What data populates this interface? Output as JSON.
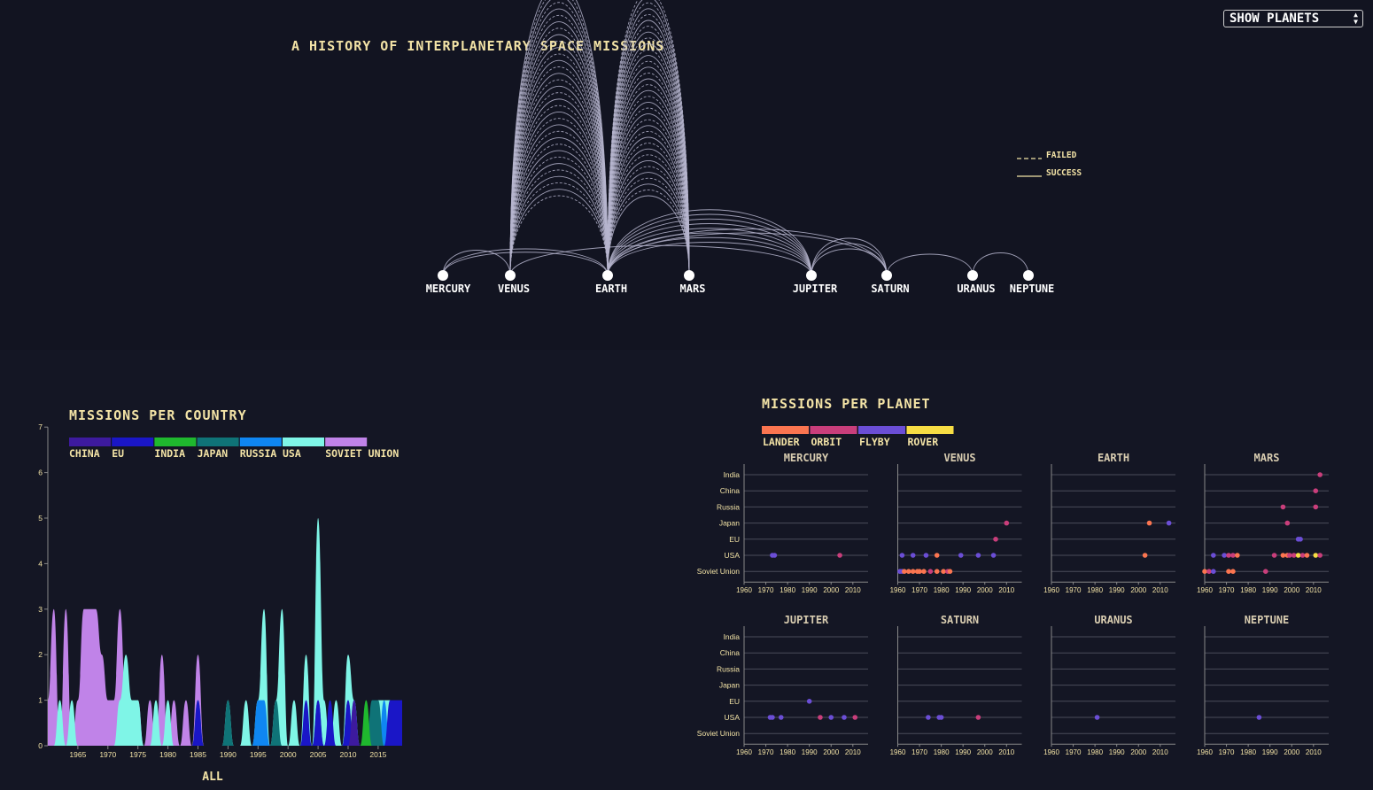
{
  "page": {
    "title": "A HISTORY OF INTERPLANETARY SPACE MISSIONS",
    "selector_value": "SHOW PLANETS"
  },
  "legend_lines": {
    "failed": "FAILED",
    "success": "SUCCESS"
  },
  "planets": [
    "MERCURY",
    "VENUS",
    "EARTH",
    "MARS",
    "JUPITER",
    "SATURN",
    "URANUS",
    "NEPTUNE"
  ],
  "country_chart": {
    "title": "MISSIONS PER COUNTRY",
    "footer": "ALL",
    "legend": [
      {
        "name": "CHINA",
        "color": "#3d1a9e"
      },
      {
        "name": "EU",
        "color": "#1a16c7"
      },
      {
        "name": "INDIA",
        "color": "#1fb82e"
      },
      {
        "name": "JAPAN",
        "color": "#0f7377"
      },
      {
        "name": "RUSSIA",
        "color": "#0f86f2"
      },
      {
        "name": "USA",
        "color": "#7ff5e7"
      },
      {
        "name": "SOVIET UNION",
        "color": "#c083e8"
      }
    ]
  },
  "planet_chart": {
    "title": "MISSIONS PER PLANET",
    "legend": [
      {
        "name": "LANDER",
        "color": "#fb7550"
      },
      {
        "name": "ORBIT",
        "color": "#c93e7b"
      },
      {
        "name": "FLYBY",
        "color": "#6b4ed6"
      },
      {
        "name": "ROVER",
        "color": "#f7dd44"
      }
    ],
    "countries": [
      "India",
      "China",
      "Russia",
      "Japan",
      "EU",
      "USA",
      "Soviet Union"
    ],
    "year_ticks": [
      "1960",
      "1970",
      "1980",
      "1990",
      "2000",
      "2010"
    ]
  },
  "chart_data": [
    {
      "type": "area",
      "title": "MISSIONS PER COUNTRY",
      "xlabel": "ALL",
      "ylim": [
        0,
        7
      ],
      "y_ticks": [
        0,
        1,
        2,
        3,
        4,
        5,
        6,
        7
      ],
      "x_ticks": [
        "1965",
        "1970",
        "1975",
        "1980",
        "1985",
        "1990",
        "1995",
        "2000",
        "2005",
        "2010",
        "2015"
      ],
      "x": [
        1960,
        1961,
        1962,
        1963,
        1964,
        1965,
        1966,
        1967,
        1968,
        1969,
        1970,
        1971,
        1972,
        1973,
        1974,
        1975,
        1976,
        1977,
        1978,
        1979,
        1980,
        1981,
        1982,
        1983,
        1984,
        1985,
        1986,
        1987,
        1988,
        1989,
        1990,
        1991,
        1992,
        1993,
        1994,
        1995,
        1996,
        1997,
        1998,
        1999,
        2000,
        2001,
        2002,
        2003,
        2004,
        2005,
        2006,
        2007,
        2008,
        2009,
        2010,
        2011,
        2012,
        2013,
        2014,
        2015,
        2016,
        2017,
        2018,
        2019
      ],
      "series": [
        {
          "name": "CHINA",
          "values": [
            0,
            0,
            0,
            0,
            0,
            0,
            0,
            0,
            0,
            0,
            0,
            0,
            0,
            0,
            0,
            0,
            0,
            0,
            0,
            0,
            0,
            0,
            0,
            0,
            0,
            0,
            0,
            0,
            0,
            0,
            0,
            0,
            0,
            0,
            0,
            0,
            0,
            0,
            0,
            0,
            0,
            0,
            0,
            0,
            0,
            0,
            0,
            0,
            0,
            0,
            0,
            1,
            0,
            0,
            0,
            0,
            0,
            0,
            0,
            0
          ]
        },
        {
          "name": "EU",
          "values": [
            0,
            0,
            0,
            0,
            0,
            0,
            0,
            0,
            0,
            0,
            0,
            0,
            0,
            0,
            0,
            0,
            0,
            0,
            0,
            0,
            0,
            0,
            0,
            0,
            0,
            1,
            0,
            0,
            0,
            0,
            0,
            0,
            0,
            0,
            0,
            0,
            0,
            0,
            0,
            0,
            0,
            0,
            0,
            1,
            0,
            1,
            0,
            1,
            0,
            0,
            1,
            0,
            0,
            0,
            0,
            0,
            0,
            1,
            1,
            1
          ]
        },
        {
          "name": "INDIA",
          "values": [
            0,
            0,
            0,
            0,
            0,
            0,
            0,
            0,
            0,
            0,
            0,
            0,
            0,
            0,
            0,
            0,
            0,
            0,
            0,
            0,
            0,
            0,
            0,
            0,
            0,
            0,
            0,
            0,
            0,
            0,
            0,
            0,
            0,
            0,
            0,
            0,
            0,
            0,
            0,
            0,
            0,
            0,
            0,
            0,
            0,
            0,
            0,
            0,
            0,
            0,
            0,
            0,
            0,
            1,
            0,
            0,
            0,
            0,
            0,
            0
          ]
        },
        {
          "name": "JAPAN",
          "values": [
            0,
            0,
            0,
            0,
            0,
            0,
            0,
            0,
            0,
            0,
            0,
            0,
            0,
            0,
            0,
            0,
            0,
            0,
            0,
            0,
            0,
            0,
            0,
            0,
            0,
            1,
            0,
            0,
            0,
            0,
            1,
            0,
            0,
            0,
            0,
            0,
            0,
            0,
            1,
            0,
            0,
            0,
            0,
            0,
            0,
            1,
            0,
            0,
            0,
            0,
            1,
            0,
            0,
            0,
            1,
            1,
            0,
            0,
            0,
            0
          ]
        },
        {
          "name": "RUSSIA",
          "values": [
            0,
            0,
            0,
            0,
            0,
            0,
            0,
            0,
            0,
            0,
            0,
            0,
            0,
            0,
            0,
            0,
            0,
            0,
            0,
            0,
            0,
            0,
            0,
            0,
            0,
            0,
            0,
            0,
            0,
            0,
            0,
            0,
            0,
            0,
            0,
            1,
            1,
            0,
            0,
            0,
            0,
            0,
            0,
            0,
            0,
            0,
            0,
            0,
            0,
            0,
            0,
            1,
            0,
            0,
            0,
            0,
            1,
            0,
            0,
            0
          ]
        },
        {
          "name": "USA",
          "values": [
            0,
            0,
            1,
            0,
            1,
            0,
            0,
            0,
            0,
            0,
            0,
            0,
            1,
            2,
            1,
            1,
            0,
            0,
            1,
            0,
            1,
            0,
            0,
            0,
            0,
            1,
            0,
            0,
            0,
            0,
            1,
            0,
            0,
            1,
            0,
            1,
            3,
            0,
            1,
            3,
            0,
            1,
            0,
            2,
            0,
            5,
            1,
            0,
            1,
            0,
            2,
            1,
            0,
            0,
            0,
            1,
            1,
            1,
            0,
            0
          ]
        },
        {
          "name": "SOVIET UNION",
          "values": [
            1,
            3,
            0,
            3,
            0,
            1,
            3,
            3,
            3,
            2,
            1,
            1,
            3,
            1,
            0,
            1,
            0,
            1,
            0,
            2,
            0,
            1,
            0,
            1,
            0,
            2,
            0,
            0,
            0,
            0,
            0,
            0,
            0,
            0,
            0,
            0,
            0,
            0,
            0,
            0,
            0,
            0,
            0,
            0,
            0,
            0,
            0,
            0,
            0,
            0,
            0,
            0,
            0,
            0,
            0,
            0,
            0,
            0,
            0,
            0
          ]
        }
      ]
    },
    {
      "type": "scatter",
      "title": "MISSIONS PER PLANET",
      "x_range": [
        1960,
        2017
      ],
      "categories": [
        "India",
        "China",
        "Russia",
        "Japan",
        "EU",
        "USA",
        "Soviet Union"
      ],
      "facets": [
        {
          "planet": "MERCURY",
          "points": [
            [
              1973,
              "USA",
              "flyby"
            ],
            [
              1974,
              "USA",
              "flyby"
            ],
            [
              2004,
              "USA",
              "orbit"
            ]
          ]
        },
        {
          "planet": "VENUS",
          "points": [
            [
              1961,
              "Soviet Union",
              "flyby"
            ],
            [
              1962,
              "USA",
              "flyby"
            ],
            [
              1962,
              "Soviet Union",
              "flyby"
            ],
            [
              1963,
              "Soviet Union",
              "lander"
            ],
            [
              1965,
              "Soviet Union",
              "lander"
            ],
            [
              1967,
              "USA",
              "flyby"
            ],
            [
              1967,
              "Soviet Union",
              "lander"
            ],
            [
              1969,
              "Soviet Union",
              "lander"
            ],
            [
              1970,
              "Soviet Union",
              "lander"
            ],
            [
              1972,
              "Soviet Union",
              "lander"
            ],
            [
              1973,
              "USA",
              "flyby"
            ],
            [
              1975,
              "Soviet Union",
              "orbit"
            ],
            [
              1978,
              "USA",
              "lander"
            ],
            [
              1978,
              "Soviet Union",
              "lander"
            ],
            [
              1981,
              "Soviet Union",
              "lander"
            ],
            [
              1983,
              "Soviet Union",
              "orbit"
            ],
            [
              1984,
              "Soviet Union",
              "lander"
            ],
            [
              1989,
              "USA",
              "flyby"
            ],
            [
              1997,
              "USA",
              "flyby"
            ],
            [
              2004,
              "USA",
              "flyby"
            ],
            [
              2005,
              "EU",
              "orbit"
            ],
            [
              2010,
              "Japan",
              "orbit"
            ]
          ]
        },
        {
          "planet": "EARTH",
          "points": [
            [
              2003,
              "USA",
              "lander"
            ],
            [
              2005,
              "Japan",
              "lander"
            ],
            [
              2014,
              "Japan",
              "flyby"
            ]
          ]
        },
        {
          "planet": "MARS",
          "points": [
            [
              1960,
              "Soviet Union",
              "lander"
            ],
            [
              1962,
              "Soviet Union",
              "orbit"
            ],
            [
              1964,
              "USA",
              "flyby"
            ],
            [
              1964,
              "Soviet Union",
              "flyby"
            ],
            [
              1969,
              "USA",
              "flyby"
            ],
            [
              1971,
              "USA",
              "orbit"
            ],
            [
              1971,
              "Soviet Union",
              "lander"
            ],
            [
              1973,
              "USA",
              "orbit"
            ],
            [
              1973,
              "Soviet Union",
              "lander"
            ],
            [
              1975,
              "USA",
              "lander"
            ],
            [
              1988,
              "Soviet Union",
              "orbit"
            ],
            [
              1992,
              "USA",
              "orbit"
            ],
            [
              1996,
              "Russia",
              "orbit"
            ],
            [
              1996,
              "USA",
              "lander"
            ],
            [
              1998,
              "USA",
              "lander"
            ],
            [
              1998,
              "Japan",
              "orbit"
            ],
            [
              1999,
              "USA",
              "orbit"
            ],
            [
              2001,
              "USA",
              "orbit"
            ],
            [
              2003,
              "EU",
              "flyby"
            ],
            [
              2003,
              "USA",
              "rover"
            ],
            [
              2004,
              "EU",
              "flyby"
            ],
            [
              2005,
              "USA",
              "orbit"
            ],
            [
              2007,
              "USA",
              "lander"
            ],
            [
              2011,
              "China",
              "orbit"
            ],
            [
              2011,
              "Russia",
              "orbit"
            ],
            [
              2011,
              "USA",
              "rover"
            ],
            [
              2013,
              "India",
              "orbit"
            ],
            [
              2013,
              "USA",
              "orbit"
            ]
          ]
        },
        {
          "planet": "JUPITER",
          "points": [
            [
              1972,
              "USA",
              "flyby"
            ],
            [
              1973,
              "USA",
              "flyby"
            ],
            [
              1977,
              "USA",
              "flyby"
            ],
            [
              1990,
              "EU",
              "flyby"
            ],
            [
              1995,
              "USA",
              "orbit"
            ],
            [
              2000,
              "USA",
              "flyby"
            ],
            [
              2006,
              "USA",
              "flyby"
            ],
            [
              2011,
              "USA",
              "orbit"
            ]
          ]
        },
        {
          "planet": "SATURN",
          "points": [
            [
              1974,
              "USA",
              "flyby"
            ],
            [
              1979,
              "USA",
              "flyby"
            ],
            [
              1980,
              "USA",
              "flyby"
            ],
            [
              1997,
              "USA",
              "orbit"
            ]
          ]
        },
        {
          "planet": "URANUS",
          "points": [
            [
              1981,
              "USA",
              "flyby"
            ]
          ]
        },
        {
          "planet": "NEPTUNE",
          "points": [
            [
              1985,
              "USA",
              "flyby"
            ]
          ]
        }
      ]
    }
  ]
}
